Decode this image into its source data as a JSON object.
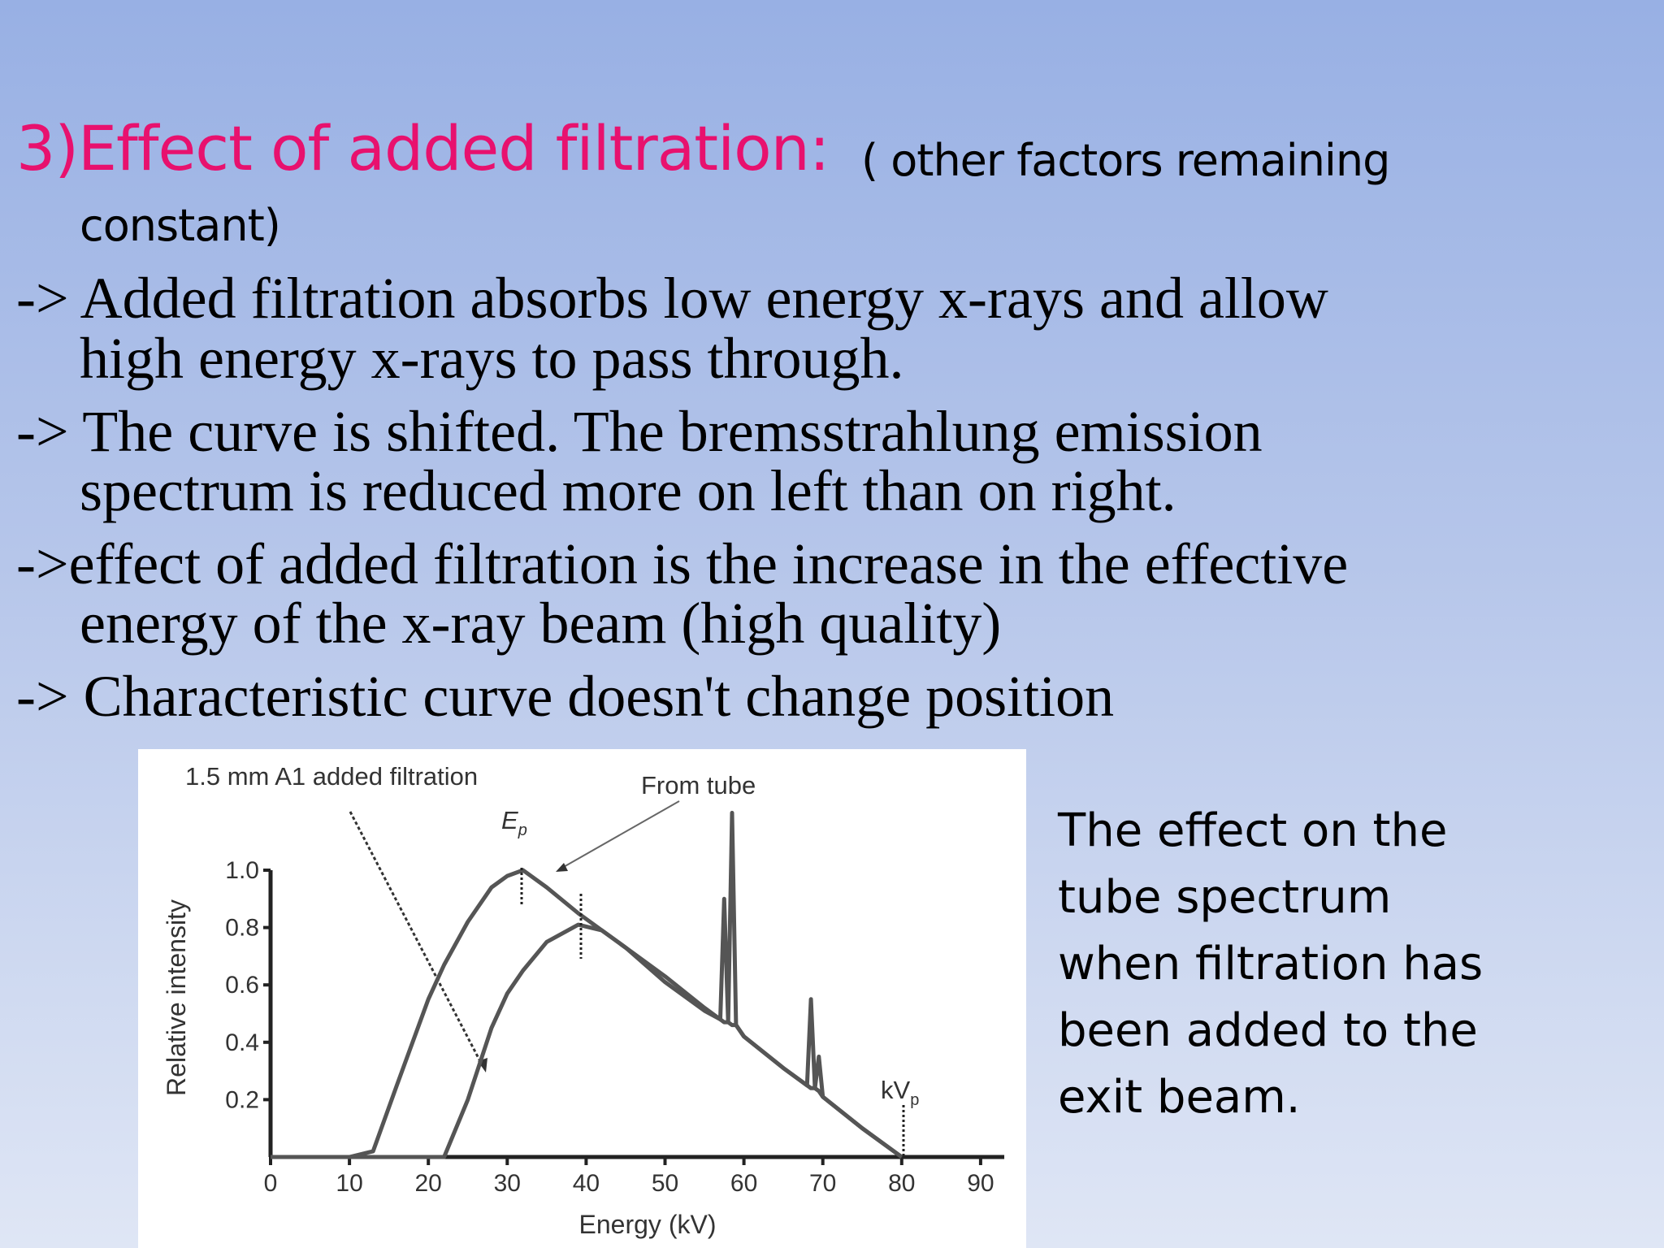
{
  "slide": {
    "title": {
      "main": "3)Effect of  added filtration:",
      "note": [
        "( other factors remaining",
        "constant)"
      ]
    },
    "bullets": [
      [
        "-> Added filtration absorbs low energy x-rays and allow",
        "high energy x-rays to pass through."
      ],
      [
        "-> The curve is shifted. The bremsstrahlung emission",
        "spectrum is reduced more on left than on right."
      ],
      [
        "->effect of added filtration is the increase in the effective",
        "energy of the x-ray beam (high quality)"
      ],
      [
        "-> Characteristic curve doesn't change position"
      ]
    ],
    "caption": [
      "The effect on the",
      "tube spectrum",
      "when filtration has",
      "been added to the",
      "exit beam."
    ]
  },
  "chart_data": {
    "type": "line",
    "x_label": "Energy (kV)",
    "y_label": "Relative intensity",
    "x": [
      0,
      10,
      13,
      16,
      20,
      22,
      25,
      28,
      30,
      32,
      35,
      39,
      42,
      45,
      50,
      55,
      57,
      57.5,
      58,
      58.5,
      59,
      60,
      65,
      68,
      68.5,
      69,
      69.5,
      70,
      75,
      80
    ],
    "series": [
      {
        "name": "From tube",
        "color": "#555555",
        "values": [
          0,
          0,
          0.02,
          0.25,
          0.55,
          0.67,
          0.82,
          0.94,
          0.98,
          1,
          0.94,
          0.85,
          0.79,
          0.73,
          0.63,
          0.52,
          0.48,
          0.9,
          0.47,
          1.2,
          0.46,
          0.42,
          0.31,
          0.25,
          0.55,
          0.24,
          0.35,
          0.21,
          0.1,
          0
        ]
      },
      {
        "name": "1.5 mm A1 added filtration",
        "color": "#555555",
        "values": [
          0,
          0,
          0,
          0,
          0,
          0,
          0.2,
          0.45,
          0.57,
          0.65,
          0.75,
          0.81,
          0.79,
          0.73,
          0.61,
          0.51,
          0.48,
          0.47,
          0.47,
          0.46,
          0.46,
          0.42,
          0.31,
          0.25,
          0.24,
          0.24,
          0.23,
          0.21,
          0.1,
          0
        ]
      }
    ],
    "annotations": [
      {
        "text": "E",
        "sub": "p"
      },
      {
        "text": "kV",
        "sub": "p"
      }
    ],
    "xlim": [
      0,
      93
    ],
    "ylim": [
      0,
      1
    ],
    "xticks": [
      0,
      10,
      20,
      30,
      40,
      50,
      60,
      70,
      80,
      90
    ],
    "yticks": [
      0.2,
      0.4,
      0.6,
      0.8,
      {
        "value": 1,
        "label": "1.0"
      }
    ]
  }
}
